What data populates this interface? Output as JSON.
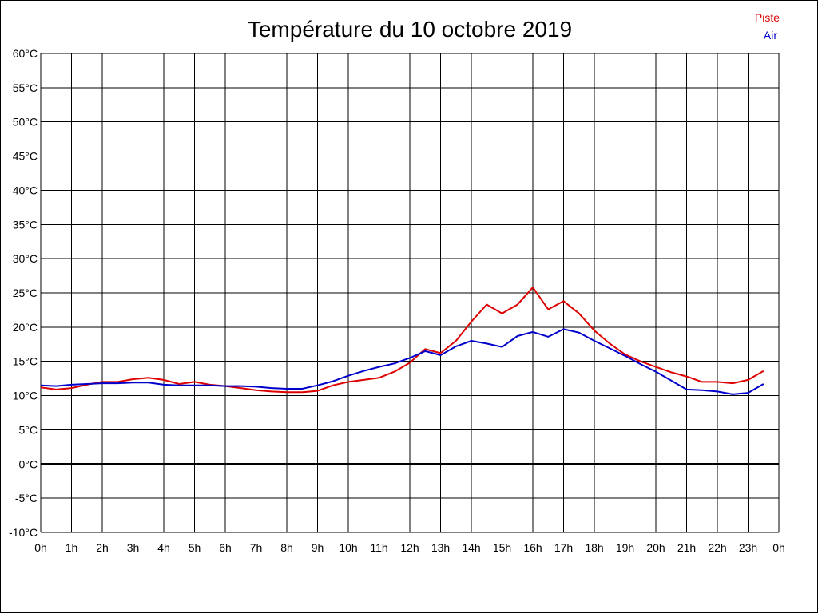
{
  "chart_data": {
    "type": "line",
    "title": "Température du 10 octobre 2019",
    "xlabel": "",
    "ylabel": "",
    "grid": true,
    "legend_position": "top-right",
    "x_unit": "h",
    "ylim": [
      -10,
      60
    ],
    "y_step": 5,
    "y_tick_labels": [
      "-10°C",
      "-5°C",
      "0°C",
      "5°C",
      "10°C",
      "15°C",
      "20°C",
      "25°C",
      "30°C",
      "35°C",
      "40°C",
      "45°C",
      "50°C",
      "55°C",
      "60°C"
    ],
    "x_tick_labels": [
      "0h",
      "1h",
      "2h",
      "3h",
      "4h",
      "5h",
      "6h",
      "7h",
      "8h",
      "9h",
      "10h",
      "11h",
      "12h",
      "13h",
      "14h",
      "15h",
      "16h",
      "17h",
      "18h",
      "19h",
      "20h",
      "21h",
      "22h",
      "23h",
      "0h"
    ],
    "x": [
      0,
      0.5,
      1,
      1.5,
      2,
      2.5,
      3,
      3.5,
      4,
      4.5,
      5,
      5.5,
      6,
      6.5,
      7,
      7.5,
      8,
      8.5,
      9,
      9.5,
      10,
      10.5,
      11,
      11.5,
      12,
      12.5,
      13,
      13.5,
      14,
      14.5,
      15,
      15.5,
      16,
      16.5,
      17,
      17.5,
      18,
      18.5,
      19,
      19.5,
      20,
      20.5,
      21,
      21.5,
      22,
      22.5,
      23,
      23.5
    ],
    "series": [
      {
        "name": "Piste",
        "color": "#dd0000",
        "values": [
          11.2,
          10.9,
          11.1,
          11.6,
          12.0,
          12.0,
          12.4,
          12.6,
          12.3,
          11.7,
          12.0,
          11.6,
          11.4,
          11.1,
          10.8,
          10.6,
          10.5,
          10.5,
          10.7,
          11.5,
          12.0,
          12.3,
          12.6,
          13.5,
          14.8,
          16.8,
          16.2,
          18.0,
          20.8,
          23.3,
          22.0,
          23.3,
          25.8,
          22.6,
          23.8,
          22.0,
          19.5,
          17.6,
          16.0,
          15.0,
          14.2,
          13.4,
          12.8,
          12.0,
          12.0,
          11.8,
          12.3,
          13.6
        ]
      },
      {
        "name": "Air",
        "color": "#0000cc",
        "values": [
          11.5,
          11.4,
          11.6,
          11.7,
          11.8,
          11.8,
          11.9,
          11.9,
          11.6,
          11.5,
          11.5,
          11.5,
          11.4,
          11.4,
          11.3,
          11.1,
          11.0,
          11.0,
          11.5,
          12.1,
          12.9,
          13.6,
          14.2,
          14.7,
          15.5,
          16.5,
          15.9,
          17.2,
          18.0,
          17.6,
          17.1,
          18.7,
          19.3,
          18.6,
          19.7,
          19.2,
          18.0,
          16.9,
          15.8,
          14.6,
          13.5,
          12.2,
          10.9,
          10.8,
          10.6,
          10.2,
          10.4,
          11.7
        ]
      }
    ]
  }
}
